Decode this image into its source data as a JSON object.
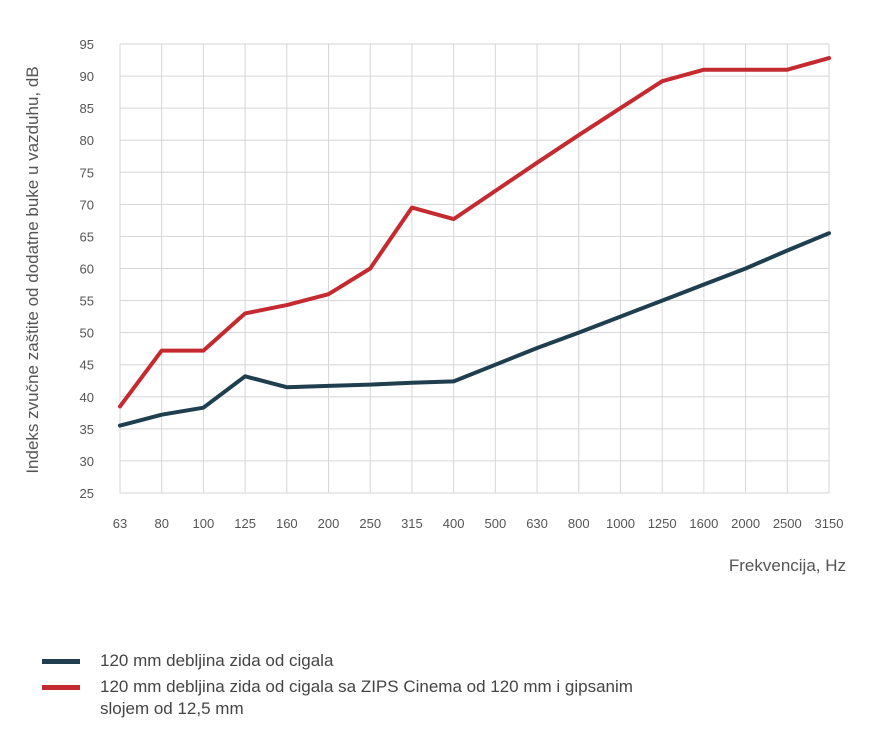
{
  "chart_data": {
    "type": "line",
    "xlabel": "Frekvencija, Hz",
    "ylabel": "Indeks zvučne zaštite od dodatne buke u vazduhu, dB",
    "categories": [
      "63",
      "80",
      "100",
      "125",
      "160",
      "200",
      "250",
      "315",
      "400",
      "500",
      "630",
      "800",
      "1000",
      "1250",
      "1600",
      "2000",
      "2500",
      "3150"
    ],
    "ylim": [
      25,
      95
    ],
    "yticks": [
      25,
      30,
      35,
      40,
      45,
      50,
      55,
      60,
      65,
      70,
      75,
      80,
      85,
      90,
      95
    ],
    "grid": true,
    "legend_position": "bottom-left",
    "series": [
      {
        "name": "120 mm debljina zida od cigala",
        "color": "#1f3f4f",
        "values": [
          35.5,
          37.2,
          38.3,
          43.2,
          41.5,
          41.7,
          41.9,
          42.2,
          42.4,
          45.0,
          47.6,
          50.0,
          52.5,
          55.0,
          57.5,
          60.0,
          62.8,
          65.5
        ]
      },
      {
        "name": "120 mm debljina zida od cigala sa ZIPS Cinema od 120 mm i gipsanim slojem od 12,5 mm",
        "color": "#c42a2f",
        "values": [
          38.5,
          47.2,
          47.2,
          53.0,
          54.3,
          56.0,
          60.0,
          69.5,
          67.7,
          72.1,
          76.5,
          80.8,
          85.0,
          89.2,
          91.0,
          91.0,
          91.0,
          92.8
        ]
      }
    ]
  }
}
